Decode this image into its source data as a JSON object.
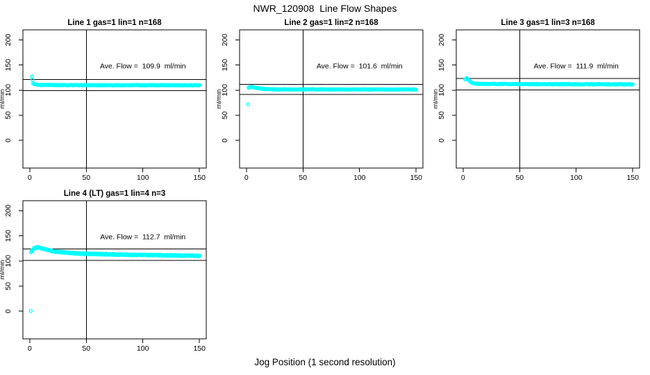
{
  "title": "NWR_120908  Line Flow Shapes",
  "xlabel": "Jog Position (1 second resolution)",
  "ylabel": "ml/min",
  "colors": {
    "points": "#00FFFF",
    "axis": "#000000",
    "text": "#000000",
    "background": "#FFFFFF"
  },
  "axes": {
    "xticks": [
      0,
      50,
      100,
      150
    ],
    "yticks": [
      0,
      50,
      100,
      150,
      200
    ],
    "xlim": [
      -6,
      156
    ],
    "ylim": [
      -55,
      220
    ],
    "vline_x": 50,
    "grid": false
  },
  "chart_data": [
    {
      "type": "scatter",
      "title": "Line 1 gas=1 lin=1 n=168",
      "gas": 1,
      "lin": 1,
      "n": 168,
      "ave_flow": 109.9,
      "annotation": "Ave. Flow =  109.9  ml/min",
      "hlines": [
        98.9,
        120.9
      ],
      "vline_x": 50,
      "band": {
        "x_start": 3,
        "x_end": 150,
        "anchors": [
          [
            3,
            113.5
          ],
          [
            4,
            112
          ],
          [
            6,
            111
          ],
          [
            10,
            110.3
          ],
          [
            40,
            110
          ],
          [
            150,
            109.8
          ]
        ],
        "noise": 0.7,
        "passes": 2
      },
      "extra_points": [
        [
          2,
          127
        ],
        [
          2.5,
          120.5
        ]
      ]
    },
    {
      "type": "scatter",
      "title": "Line 2 gas=1 lin=2 n=168",
      "gas": 1,
      "lin": 2,
      "n": 168,
      "ave_flow": 101.6,
      "annotation": "Ave. Flow =  101.6  ml/min",
      "hlines": [
        91.4,
        111.8
      ],
      "vline_x": 50,
      "band": {
        "x_start": 2,
        "x_end": 150,
        "anchors": [
          [
            2,
            104.5
          ],
          [
            4,
            106.5
          ],
          [
            6,
            106
          ],
          [
            9,
            104.5
          ],
          [
            13,
            103
          ],
          [
            18,
            102
          ],
          [
            28,
            101.6
          ],
          [
            150,
            101.3
          ]
        ],
        "noise": 0.7,
        "passes": 2
      },
      "extra_points": [
        [
          1.5,
          72
        ]
      ]
    },
    {
      "type": "scatter",
      "title": "Line 3 gas=1 lin=3 n=168",
      "gas": 1,
      "lin": 3,
      "n": 168,
      "ave_flow": 111.9,
      "annotation": "Ave. Flow =  111.9  ml/min",
      "hlines": [
        100.7,
        123.1
      ],
      "vline_x": 50,
      "band": {
        "x_start": 2,
        "x_end": 150,
        "anchors": [
          [
            2,
            121
          ],
          [
            3,
            123.5
          ],
          [
            4,
            122.5
          ],
          [
            6,
            117.5
          ],
          [
            8,
            114.5
          ],
          [
            12,
            112.8
          ],
          [
            30,
            112.2
          ],
          [
            150,
            111.6
          ]
        ],
        "noise": 0.8,
        "passes": 2
      },
      "extra_points": []
    },
    {
      "type": "scatter",
      "title": "Line 4 (LT) gas=1 lin=4 n=3",
      "gas": 1,
      "lin": 4,
      "n": 3,
      "ave_flow": 112.7,
      "annotation": "Ave. Flow =  112.7  ml/min",
      "hlines": [
        101.4,
        124.0
      ],
      "vline_x": 50,
      "band": {
        "x_start": 2,
        "x_end": 150,
        "anchors": [
          [
            2,
            120
          ],
          [
            3,
            123
          ],
          [
            4,
            125.5
          ],
          [
            6,
            127
          ],
          [
            9,
            126.5
          ],
          [
            12,
            124.5
          ],
          [
            16,
            121.8
          ],
          [
            20,
            119.8
          ],
          [
            26,
            118
          ],
          [
            34,
            116.4
          ],
          [
            42,
            115.2
          ],
          [
            50,
            114.4
          ],
          [
            62,
            113.6
          ],
          [
            75,
            113
          ],
          [
            90,
            112.4
          ],
          [
            105,
            111.9
          ],
          [
            120,
            111.3
          ],
          [
            135,
            110.8
          ],
          [
            150,
            110.3
          ]
        ],
        "noise": 1.2,
        "passes": 3
      },
      "extra_points": [
        [
          1,
          117
        ],
        [
          1,
          0.5
        ]
      ]
    }
  ]
}
